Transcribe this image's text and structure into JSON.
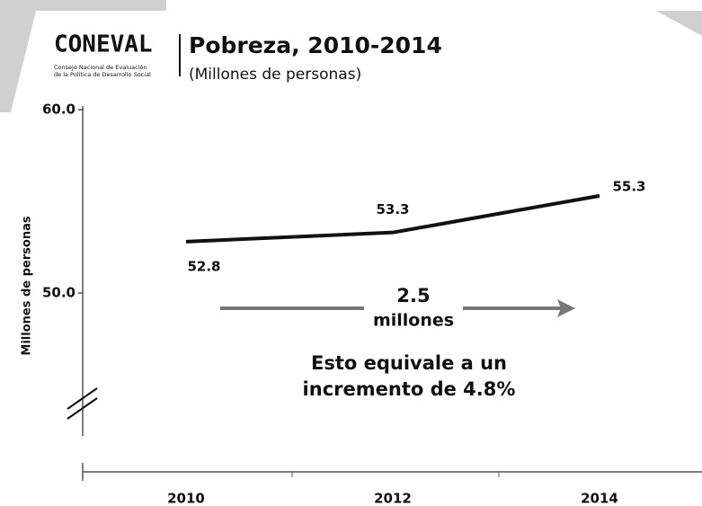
{
  "logo": {
    "name": "CONEVAL",
    "tagline": [
      "Consejo Nacional de Evaluación",
      "de la Política de Desarrollo Social"
    ]
  },
  "chart_data": {
    "type": "line",
    "title": "Pobreza, 2010-2014",
    "subtitle": "(Millones de personas)",
    "y_label": "Millones de personas",
    "categories": [
      "2010",
      "2012",
      "2014"
    ],
    "series": [
      {
        "name": "Pobreza",
        "color": "#111111",
        "values": [
          52.8,
          53.3,
          55.3
        ]
      }
    ],
    "ylim": [
      50,
      60
    ],
    "yticks": [
      {
        "value": 50,
        "label": "50.0"
      },
      {
        "value": 60,
        "label": "60.0"
      }
    ],
    "annotations": [
      "2.5",
      "millones",
      "Esto equivale a un",
      "incremento de 4.8%"
    ],
    "arrow_color": "#777777"
  }
}
